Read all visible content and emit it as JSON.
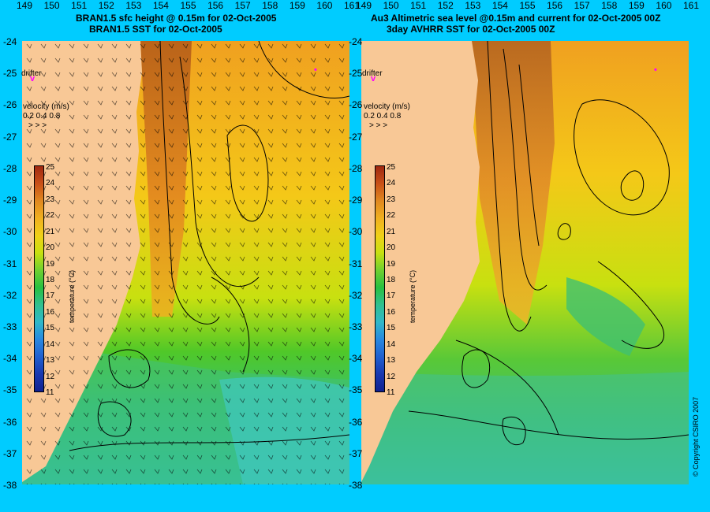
{
  "left_panel": {
    "title_line1": "BRAN1.5 sfc height @ 0.15m for 02-Oct-2005",
    "title_line2": "BRAN1.5 SST for 02-Oct-2005"
  },
  "right_panel": {
    "title_line1": "Au3 Altimetric sea level  @0.15m and current for 02-Oct-2005 00Z",
    "title_line2": "3day AVHRR SST for 02-Oct-2005 00Z"
  },
  "legend": {
    "drifter_label": "drifter",
    "drifter_mark": "v",
    "velocity_title": "velocity (m/s)",
    "velocity_values": "0.2 0.4 0.8",
    "velocity_arrows": "> > >",
    "colorbar_title": "temperature (°C)",
    "colorbar_ticks": [
      "25",
      "24",
      "23",
      "22",
      "21",
      "20",
      "19",
      "18",
      "17",
      "16",
      "15",
      "14",
      "13",
      "12",
      "11"
    ]
  },
  "axes": {
    "lat_ticks": [
      "-24",
      "-25",
      "-26",
      "-27",
      "-28",
      "-29",
      "-30",
      "-31",
      "-32",
      "-33",
      "-34",
      "-35",
      "-36",
      "-37",
      "-38"
    ],
    "lon_ticks": [
      "149",
      "150",
      "151",
      "152",
      "153",
      "154",
      "155",
      "156",
      "157",
      "158",
      "159",
      "160",
      "161"
    ]
  },
  "copyright": "© Copyright CSIRO 2007",
  "colors": {
    "background": "#00ccff",
    "land": "#f8c896",
    "accent_magenta": "#ff00ff"
  }
}
